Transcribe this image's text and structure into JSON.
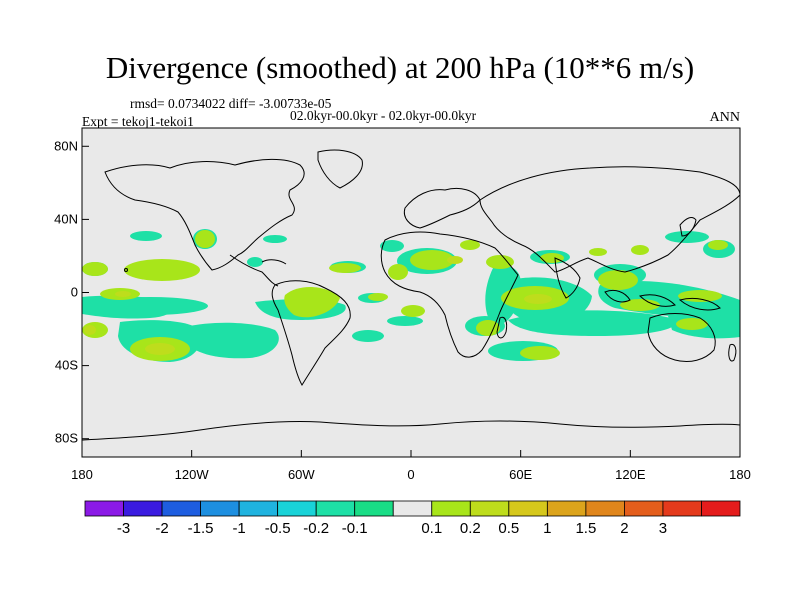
{
  "title": "Divergence (smoothed) at 200 hPa (10**6 m/s)",
  "stats_line": "rmsd= 0.0734022 diff= -3.00733e-05",
  "period_line": "02.0kyr-00.0kyr - 02.0kyr-00.0kyr",
  "expt_line": "Expt = tekoj1-tekoi1",
  "season": "ANN",
  "axes": {
    "lat_ticks": [
      {
        "lat": 80,
        "label": "80N"
      },
      {
        "lat": 40,
        "label": "40N"
      },
      {
        "lat": 0,
        "label": "0"
      },
      {
        "lat": -40,
        "label": "40S"
      },
      {
        "lat": -80,
        "label": "80S"
      }
    ],
    "lon_ticks": [
      {
        "lon": -180,
        "label": "180"
      },
      {
        "lon": -120,
        "label": "120W"
      },
      {
        "lon": -60,
        "label": "60W"
      },
      {
        "lon": 0,
        "label": "0"
      },
      {
        "lon": 60,
        "label": "60E"
      },
      {
        "lon": 120,
        "label": "120E"
      },
      {
        "lon": 180,
        "label": "180"
      }
    ]
  },
  "colorbar": {
    "colors": [
      "#8b1ae6",
      "#3a1be0",
      "#1e5de0",
      "#1d8fe0",
      "#1fb3df",
      "#19d3d8",
      "#1ee0a6",
      "#19dd86",
      "#e9e9e9",
      "#a8e51a",
      "#bedd1c",
      "#d6c81c",
      "#dca41c",
      "#e0861c",
      "#e45e1c",
      "#e43a1c",
      "#e41c1c"
    ],
    "labels": [
      "-3",
      "-2",
      "-1.5",
      "-1",
      "-0.5",
      "-0.2",
      "-0.1",
      "0.1",
      "0.2",
      "0.5",
      "1",
      "1.5",
      "2",
      "3"
    ]
  },
  "field_colors": {
    "neutral": "#e9e9e9",
    "weak_negative": "#1ee0a6",
    "weak_positive": "#a8e51a",
    "moderate_positive": "#bedd1c",
    "coast": "#000000"
  }
}
